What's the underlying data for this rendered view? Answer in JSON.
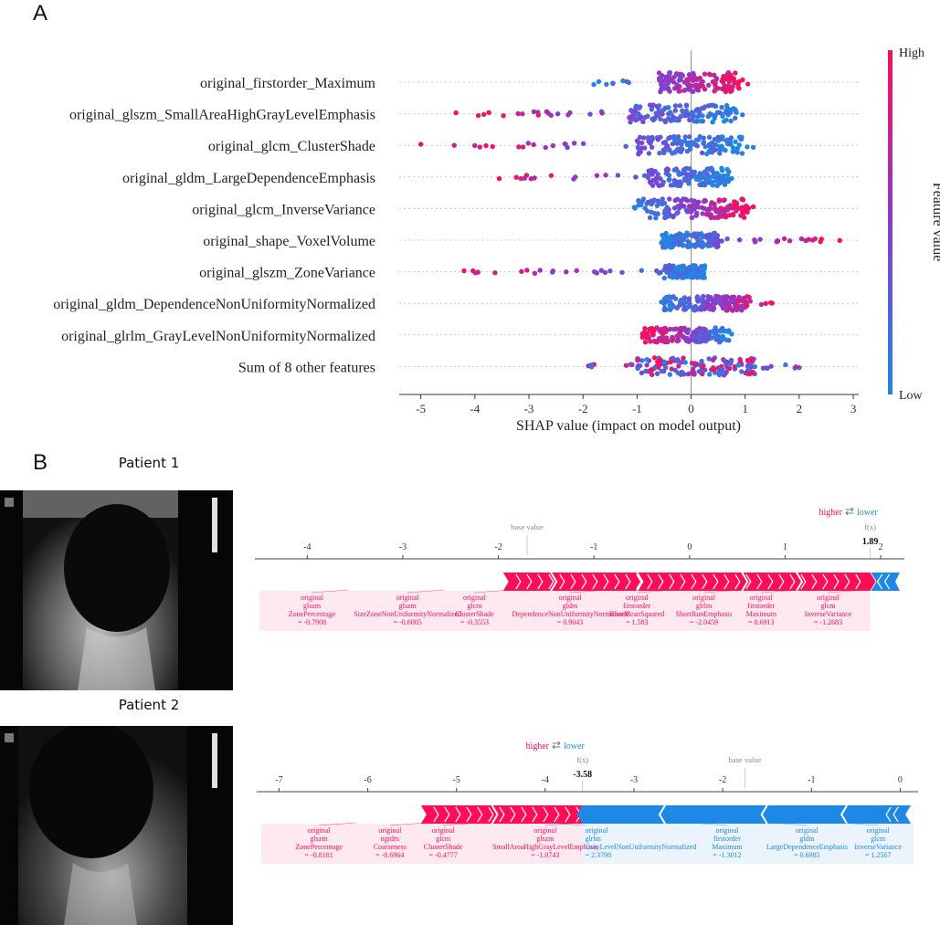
{
  "panels": {
    "a": "A",
    "b": "B"
  },
  "patients": [
    {
      "label": "Patient 1"
    },
    {
      "label": "Patient 2"
    }
  ],
  "colors": {
    "high": "#ff0d57",
    "low": "#1e88e5",
    "axis": "#333333",
    "grid": "#cccccc"
  },
  "chart_data": [
    {
      "type": "scatter",
      "subtype": "shap-beeswarm",
      "xlabel": "SHAP value (impact on model output)",
      "xlim": [
        -5.4,
        3.1
      ],
      "xticks": [
        -5,
        -4,
        -3,
        -2,
        -1,
        0,
        1,
        2,
        3
      ],
      "colorbar": {
        "label": "Feature value",
        "high": "High",
        "low": "Low"
      },
      "features": [
        {
          "name": "original_firstorder_Maximum",
          "min": -1.8,
          "max": 1.05,
          "core": [
            -0.6,
            0.9
          ],
          "spread": 0.6,
          "trend": "pos"
        },
        {
          "name": "original_glszm_SmallAreaHighGrayLevelEmphasis",
          "min": -4.35,
          "max": 0.95,
          "core": [
            -1.2,
            0.9
          ],
          "spread": 0.55,
          "trend": "neg"
        },
        {
          "name": "original_glcm_ClusterShade",
          "min": -5.0,
          "max": 1.15,
          "core": [
            -1.0,
            1.0
          ],
          "spread": 0.55,
          "trend": "neg"
        },
        {
          "name": "original_gldm_LargeDependenceEmphasis",
          "min": -3.55,
          "max": 0.75,
          "core": [
            -0.8,
            0.7
          ],
          "spread": 0.55,
          "trend": "neg"
        },
        {
          "name": "original_glcm_InverseVariance",
          "min": -1.05,
          "max": 1.15,
          "core": [
            -1.0,
            1.05
          ],
          "spread": 0.6,
          "trend": "pos"
        },
        {
          "name": "original_shape_VoxelVolume",
          "min": -0.55,
          "max": 2.75,
          "core": [
            -0.55,
            0.5
          ],
          "spread": 0.45,
          "trend": "pos"
        },
        {
          "name": "original_glszm_ZoneVariance",
          "min": -4.2,
          "max": 0.25,
          "core": [
            -0.5,
            0.25
          ],
          "spread": 0.4,
          "trend": "neg"
        },
        {
          "name": "original_gldm_DependenceNonUniformityNormalized",
          "min": -0.55,
          "max": 1.5,
          "core": [
            -0.5,
            1.1
          ],
          "spread": 0.45,
          "trend": "pos"
        },
        {
          "name": "original_glrlm_GrayLevelNonUniformityNormalized",
          "min": -0.9,
          "max": 0.75,
          "core": [
            -0.9,
            0.7
          ],
          "spread": 0.45,
          "trend": "neg"
        },
        {
          "name": "Sum of 8 other features",
          "min": -1.9,
          "max": 2.0,
          "core": [
            -1.0,
            1.2
          ],
          "spread": 0.55,
          "trend": "mix"
        }
      ]
    },
    {
      "type": "bar",
      "subtype": "shap-force",
      "title": "Patient 1",
      "legend": {
        "higher": "higher",
        "lower": "lower",
        "arrows": "⇄"
      },
      "base_label": "base value",
      "fx_label": "f(x)",
      "fx_value": "1.89",
      "fx": 1.89,
      "base_value": -1.7,
      "xlim": [
        -4.5,
        2.2
      ],
      "xticks": [
        -4,
        -3,
        -2,
        -1,
        0,
        1,
        2
      ],
      "pos_start": -1.95,
      "pos_boundaries": [
        -1.95,
        -1.45,
        -0.55,
        0.55,
        1.12,
        1.89
      ],
      "neg_end": 2.2,
      "labels": [
        {
          "x": -3.95,
          "lines": [
            "original",
            "glszm",
            "ZonePercentage",
            "= -0.7908"
          ],
          "color": "high"
        },
        {
          "x": -2.95,
          "lines": [
            "original",
            "glszm",
            "SizeZoneNonUniformityNormalized",
            "= -0.6005"
          ],
          "color": "high"
        },
        {
          "x": -2.25,
          "lines": [
            "original",
            "glcm",
            "ClusterShade",
            "= -0.3553"
          ],
          "color": "high"
        },
        {
          "x": -1.25,
          "lines": [
            "original",
            "gldm",
            "DependenceNonUniformityNormalized",
            "= 0.9043"
          ],
          "color": "high"
        },
        {
          "x": -0.55,
          "lines": [
            "original",
            "firstorder",
            "RootMeanSquared",
            "= 1.583"
          ],
          "color": "high"
        },
        {
          "x": 0.15,
          "lines": [
            "original",
            "glrlm",
            "ShortRunEmphasis",
            "= -2.0459"
          ],
          "color": "high"
        },
        {
          "x": 0.75,
          "lines": [
            "original",
            "firstorder",
            "Maximum",
            "= 0.6913"
          ],
          "color": "high"
        },
        {
          "x": 1.45,
          "lines": [
            "original",
            "glcm",
            "InverseVariance",
            "= -1.2683"
          ],
          "color": "high"
        }
      ]
    },
    {
      "type": "bar",
      "subtype": "shap-force",
      "title": "Patient 2",
      "legend": {
        "higher": "higher",
        "lower": "lower",
        "arrows": "⇄"
      },
      "base_label": "base value",
      "fx_label": "f(x)",
      "fx_value": "-3.58",
      "fx": -3.58,
      "base_value": -1.75,
      "xlim": [
        -7.2,
        0.15
      ],
      "xticks": [
        -7,
        -6,
        -5,
        -4,
        -3,
        -2,
        -1,
        0
      ],
      "pos_start": -5.4,
      "pos_boundaries": [
        -5.4,
        -4.6,
        -3.58
      ],
      "neg_boundaries": [
        -3.58,
        -2.65,
        -1.5,
        -0.6,
        0.12
      ],
      "labels": [
        {
          "x": -6.55,
          "lines": [
            "original",
            "glszm",
            "ZonePercentage",
            "= -0.8181"
          ],
          "color": "high"
        },
        {
          "x": -5.75,
          "lines": [
            "original",
            "ngtdm",
            "Coarseness",
            "= -0.6964"
          ],
          "color": "high"
        },
        {
          "x": -5.15,
          "lines": [
            "original",
            "glcm",
            "ClusterShade",
            "= -0.4777"
          ],
          "color": "high"
        },
        {
          "x": -4.0,
          "lines": [
            "original",
            "glszm",
            "SmallAreaHighGrayLevelEmphasis",
            "= -1.0743"
          ],
          "color": "high"
        },
        {
          "x": -3.55,
          "lines": [
            "original",
            "glrlm",
            "GrayLevelNonUniformityNormalized",
            "= 2.3798"
          ],
          "color": "low",
          "align": "start"
        },
        {
          "x": -1.95,
          "lines": [
            "original",
            "firstorder",
            "Maximum",
            "= -1.3012"
          ],
          "color": "low"
        },
        {
          "x": -1.05,
          "lines": [
            "original",
            "gldm",
            "LargeDependenceEmphasis",
            "= 0.6985"
          ],
          "color": "low"
        },
        {
          "x": -0.25,
          "lines": [
            "original",
            "glcm",
            "InverseVariance",
            "= 1.2567"
          ],
          "color": "low"
        }
      ]
    }
  ]
}
